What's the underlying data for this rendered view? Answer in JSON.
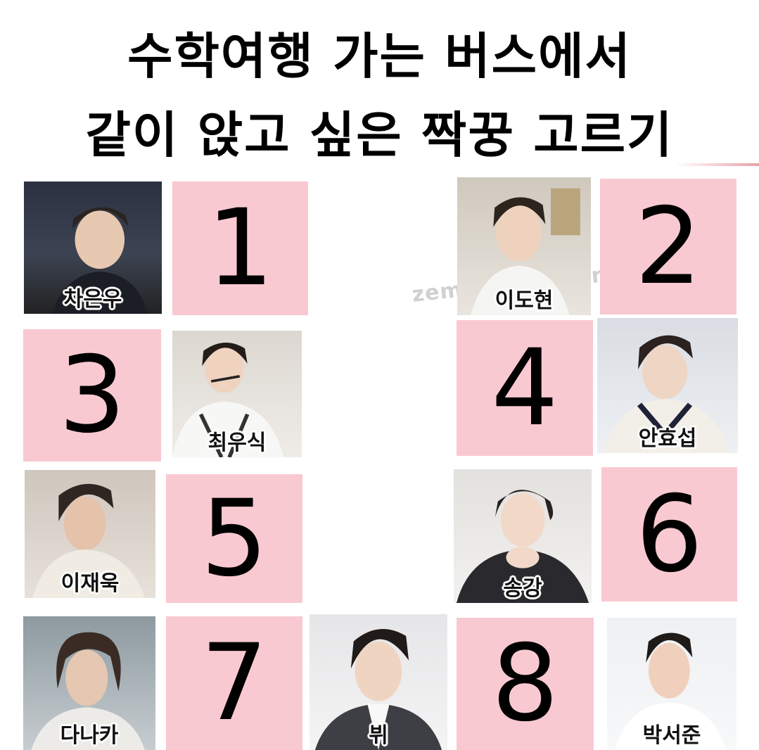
{
  "title": {
    "line1": "수학여행 가는 버스에서",
    "line2": "같이 앉고 싶은 짝꿍 고르기"
  },
  "watermark": "zemzem-humor",
  "cards": [
    {
      "number": "1",
      "name": "차은우"
    },
    {
      "number": "2",
      "name": "이도현"
    },
    {
      "number": "3",
      "name": "최우식"
    },
    {
      "number": "4",
      "name": "안효섭"
    },
    {
      "number": "5",
      "name": "이재욱"
    },
    {
      "number": "6",
      "name": "송강"
    },
    {
      "number": "7",
      "name": "다나카"
    },
    {
      "number": "8",
      "name": "뷔"
    },
    {
      "name": "박서준"
    }
  ],
  "colors": {
    "number_tile": "#f9c9d1",
    "title_text": "#000000"
  }
}
